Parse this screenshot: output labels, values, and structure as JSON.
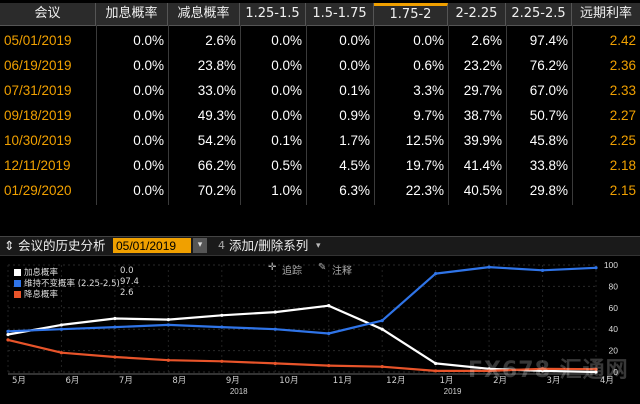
{
  "table": {
    "headers": [
      "会议",
      "加息概率",
      "减息概率",
      "1.25-1.5",
      "1.5-1.75",
      "1.75-2",
      "2-2.25",
      "2.25-2.5",
      "远期利率"
    ],
    "rows": [
      {
        "date": "05/01/2019",
        "values": [
          "0.0%",
          "2.6%",
          "0.0%",
          "0.0%",
          "0.0%",
          "2.6%",
          "97.4%",
          "2.42"
        ]
      },
      {
        "date": "06/19/2019",
        "values": [
          "0.0%",
          "23.8%",
          "0.0%",
          "0.0%",
          "0.6%",
          "23.2%",
          "76.2%",
          "2.36"
        ]
      },
      {
        "date": "07/31/2019",
        "values": [
          "0.0%",
          "33.0%",
          "0.0%",
          "0.1%",
          "3.3%",
          "29.7%",
          "67.0%",
          "2.33"
        ]
      },
      {
        "date": "09/18/2019",
        "values": [
          "0.0%",
          "49.3%",
          "0.0%",
          "0.9%",
          "9.7%",
          "38.7%",
          "50.7%",
          "2.27"
        ]
      },
      {
        "date": "10/30/2019",
        "values": [
          "0.0%",
          "54.2%",
          "0.1%",
          "1.7%",
          "12.5%",
          "39.9%",
          "45.8%",
          "2.25"
        ]
      },
      {
        "date": "12/11/2019",
        "values": [
          "0.0%",
          "66.2%",
          "0.5%",
          "4.5%",
          "19.7%",
          "41.4%",
          "33.8%",
          "2.18"
        ]
      },
      {
        "date": "01/29/2020",
        "values": [
          "0.0%",
          "70.2%",
          "1.0%",
          "6.3%",
          "22.3%",
          "40.5%",
          "29.8%",
          "2.15"
        ]
      }
    ]
  },
  "history": {
    "title": "会议的历史分析",
    "date_value": "05/01/2019",
    "add_label": "添加/删除系列",
    "dropdown_glyph": "▾"
  },
  "chart_tools": {
    "track_label": "追踪",
    "annotate_label": "注释"
  },
  "legend": [
    {
      "label": "加息概率",
      "value": "0.0",
      "color": "#ffffff"
    },
    {
      "label": "维持不变概率 (2.25-2.5)",
      "value": "97.4",
      "color": "#2f74e8"
    },
    {
      "label": "降息概率",
      "value": "2.6",
      "color": "#e8542a"
    }
  ],
  "watermark": "FX678 汇通网",
  "colors": {
    "accent": "#f0a000",
    "hold": "#2f74e8",
    "cut": "#e8542a",
    "hike": "#ffffff"
  },
  "chart_data": {
    "type": "line",
    "x": [
      "2018-05",
      "2018-06",
      "2018-07",
      "2018-08",
      "2018-09",
      "2018-10",
      "2018-11",
      "2018-12",
      "2019-01",
      "2019-02",
      "2019-03",
      "2019-04"
    ],
    "xlabels": [
      "5月",
      "6月",
      "7月",
      "8月",
      "9月",
      "10月",
      "11月",
      "12月",
      "1月",
      "2月",
      "3月",
      "4月"
    ],
    "year_labels": [
      "2018",
      "2019"
    ],
    "yticks": [
      0,
      20,
      40,
      60,
      80,
      100
    ],
    "ylim": [
      0,
      100
    ],
    "series": [
      {
        "name": "加息概率",
        "color": "#ffffff",
        "values": [
          35,
          44,
          50,
          49,
          53,
          56,
          62,
          40,
          8,
          3,
          1,
          0
        ]
      },
      {
        "name": "维持不变概率 (2.25-2.5)",
        "color": "#2f74e8",
        "values": [
          38,
          40,
          42,
          44,
          42,
          40,
          36,
          48,
          92,
          98,
          95,
          97.4
        ]
      },
      {
        "name": "降息概率",
        "color": "#e8542a",
        "values": [
          30,
          18,
          14,
          11,
          10,
          8,
          6,
          5,
          1,
          1,
          3,
          2.6
        ]
      }
    ]
  }
}
